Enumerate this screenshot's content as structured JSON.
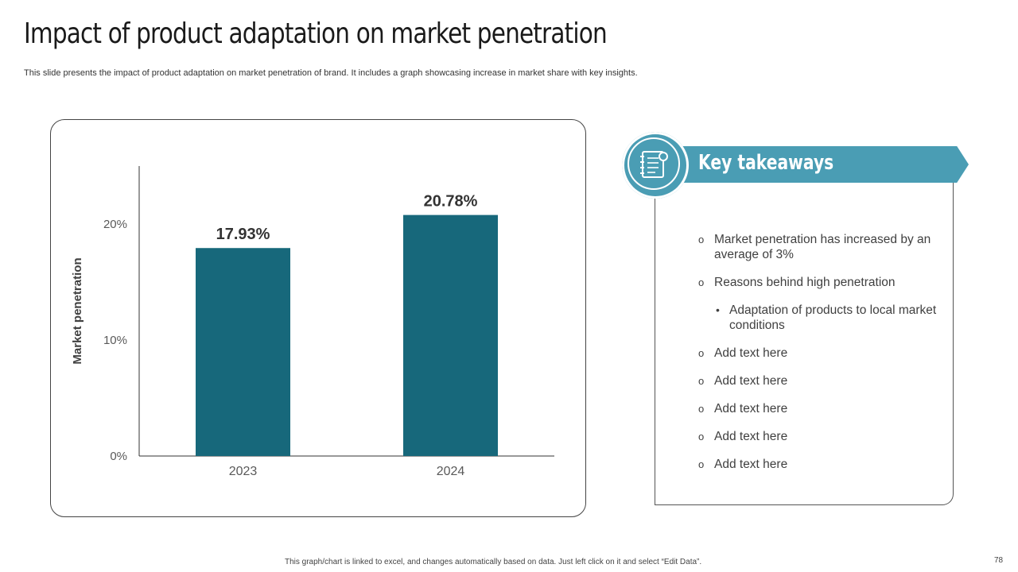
{
  "slide": {
    "title": "Impact of product adaptation on market penetration",
    "subtitle": "This slide presents the impact of product adaptation on market penetration of brand. It includes a graph showcasing increase in market share with key insights.",
    "footer_note": "This graph/chart is linked to excel, and changes automatically based on data. Just left click on it and select “Edit Data”.",
    "page_number": "78"
  },
  "chart_data": {
    "type": "bar",
    "categories": [
      "2023",
      "2024"
    ],
    "values": [
      17.93,
      20.78
    ],
    "value_labels": [
      "17.93%",
      "20.78%"
    ],
    "title": "",
    "xlabel": "",
    "ylabel": "Market penetration",
    "ylim": [
      0,
      25
    ],
    "y_ticks": [
      0,
      10,
      20
    ],
    "y_tick_labels": [
      "0%",
      "10%",
      "20%"
    ],
    "grid": false,
    "bar_color": "#17687b"
  },
  "takeaways": {
    "heading": "Key takeaways",
    "icon": "notebook-icon",
    "items": [
      {
        "bullet": "o",
        "text": "Market penetration has increased by an average of 3%"
      },
      {
        "bullet": "o",
        "text": "Reasons behind high penetration"
      },
      {
        "bullet": "•",
        "text": "Adaptation of products to local market conditions"
      },
      {
        "bullet": "o",
        "text": "Add text here"
      },
      {
        "bullet": "o",
        "text": "Add text here"
      },
      {
        "bullet": "o",
        "text": "Add text here"
      },
      {
        "bullet": "o",
        "text": "Add text here"
      },
      {
        "bullet": "o",
        "text": "Add text here"
      }
    ]
  },
  "colors": {
    "accent": "#4a9db4",
    "bar": "#17687b"
  }
}
